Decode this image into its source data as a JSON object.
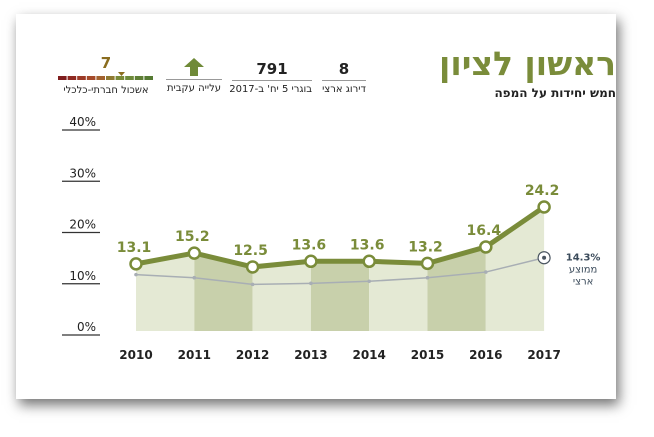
{
  "header": {
    "title": "ראשון לציון",
    "subtitle": "חמש יחידות על המפה"
  },
  "stats": [
    {
      "value": "8",
      "label": "דירוג ארצי"
    },
    {
      "value": "791",
      "label": "בוגרי 5 יח' ב-2017"
    },
    {
      "value": "",
      "label": "עלייה עקבית",
      "icon": "up-arrow-icon"
    },
    {
      "value": "7",
      "label": "אשכול חברתי-כלכלי",
      "icon": "cluster-scale-icon"
    }
  ],
  "colors": {
    "brand": "#7a8c3a",
    "series_line": "#7a8c3a",
    "national_line": "#a8aeb4",
    "area_light": "#e4e9d4",
    "area_dark": "#c8d0ab",
    "scale": [
      "#7f1d1d",
      "#8f2a22",
      "#9c3a27",
      "#a54a2a",
      "#a2622e",
      "#8f7a32",
      "#7a8a38",
      "#6e8a3a",
      "#5f7f35",
      "#557a32"
    ]
  },
  "chart_data": {
    "type": "line",
    "x": [
      "2010",
      "2011",
      "2012",
      "2013",
      "2014",
      "2015",
      "2016",
      "2017"
    ],
    "series": [
      {
        "values": [
          13.1,
          15.2,
          12.5,
          13.6,
          13.6,
          13.2,
          16.4,
          24.2
        ],
        "labels": [
          "13.1",
          "15.2",
          "12.5",
          "13.6",
          "13.6",
          "13.2",
          "16.4",
          "24.2"
        ]
      },
      {
        "values": [
          11.0,
          10.4,
          9.1,
          9.3,
          9.7,
          10.4,
          11.5,
          14.3
        ]
      }
    ],
    "national_label": {
      "value": "14.3%",
      "text_line1": "ממוצע",
      "text_line2": "ארצי"
    },
    "yticks": [
      "0%",
      "10%",
      "20%",
      "30%",
      "40%"
    ],
    "ylim": [
      0,
      40
    ],
    "grid": false
  }
}
